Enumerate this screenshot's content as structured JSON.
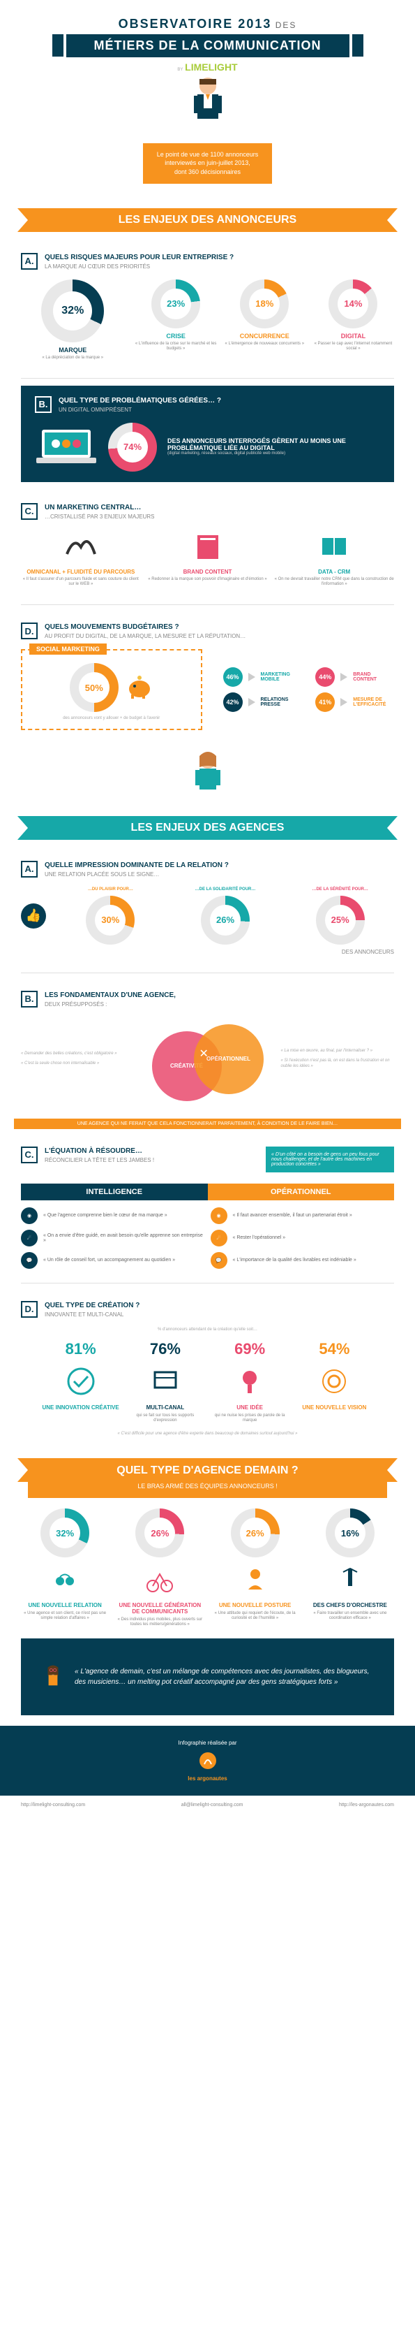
{
  "header": {
    "line1": "OBSERVATOIRE 2013",
    "line1_suffix": "DES",
    "banner": "MÉTIERS DE LA COMMUNICATION",
    "by": "BY",
    "brand": "LIMELIGHT",
    "brand_sub": "CONSULTING",
    "subtitle": "Le point de vue de 1100 annonceurs\ninterviewés en juin-juillet 2013,\ndont 360 décisionnaires"
  },
  "sections": {
    "annonceurs": "LES ENJEUX DES ANNONCEURS",
    "agences": "LES ENJEUX DES AGENCES",
    "demain": "QUEL TYPE D'AGENCE DEMAIN ?",
    "demain_sub": "LE BRAS ARMÉ DES ÉQUIPES ANNONCEURS !"
  },
  "A1": {
    "title": "QUELS RISQUES MAJEURS POUR LEUR ENTREPRISE ?",
    "sub": "LA MARQUE AU CŒUR DES PRIORITÉS",
    "main": {
      "pct": "32%",
      "deg": 115,
      "color": "#053d52",
      "label": "MARQUE",
      "desc": "« La dépréciation de la marque »"
    },
    "items": [
      {
        "pct": "23%",
        "deg": 83,
        "color": "#16a8a8",
        "name": "CRISE",
        "desc": "« L'influence de la crise sur le marché et les budgets »"
      },
      {
        "pct": "18%",
        "deg": 65,
        "color": "#f7931e",
        "name": "CONCURRENCE",
        "desc": "« L'émergence de nouveaux concurrents »"
      },
      {
        "pct": "14%",
        "deg": 50,
        "color": "#e94b6e",
        "name": "DIGITAL",
        "desc": "« Passer le cap avec l'internet notamment social »"
      }
    ]
  },
  "B1": {
    "title": "QUEL TYPE DE PROBLÉMATIQUES GÉRÉES… ?",
    "sub": "UN DIGITAL OMNIPRÉSENT",
    "pct": "74%",
    "deg": 266,
    "color": "#e94b6e",
    "text": "DES ANNONCEURS INTERROGÉS GÈRENT AU MOINS UNE PROBLÉMATIQUE LIÉE AU DIGITAL",
    "tiny": "(digital marketing, réseaux sociaux, digital publicité web mobile)"
  },
  "C1": {
    "title": "UN MARKETING CENTRAL…",
    "sub": "…CRISTALLISÉ PAR 3 ENJEUX MAJEURS",
    "items": [
      {
        "name": "OMNICANAL + FLUIDITÉ DU PARCOURS",
        "color": "#f7931e",
        "desc": "« Il faut s'assurer d'un parcours fluide et sans couture du client sur le WEB »"
      },
      {
        "name": "BRAND CONTENT",
        "color": "#e94b6e",
        "desc": "« Redonner à la marque son pouvoir d'imaginaire et d'émotion »"
      },
      {
        "name": "DATA - CRM",
        "color": "#16a8a8",
        "desc": "« On ne devrait travailler notre CRM que dans la construction de l'information »"
      }
    ]
  },
  "D1": {
    "title": "QUELS MOUVEMENTS BUDGÉTAIRES ?",
    "sub": "AU PROFIT DU DIGITAL, DE LA MARQUE, LA MESURE ET LA RÉPUTATION…",
    "social": {
      "tag": "SOCIAL MARKETING",
      "pct": "50%",
      "deg": 180,
      "color": "#f7931e",
      "desc": "des annonceurs vont y allouer + de budget à l'avenir"
    },
    "grid": [
      {
        "pct": "46%",
        "label": "MARKETING MOBILE",
        "color": "#16a8a8"
      },
      {
        "pct": "44%",
        "label": "BRAND CONTENT",
        "color": "#e94b6e"
      },
      {
        "pct": "42%",
        "label": "RELATIONS PRESSE",
        "color": "#053d52"
      },
      {
        "pct": "41%",
        "label": "MESURE DE L'EFFICACITÉ",
        "color": "#f7931e"
      }
    ]
  },
  "A2": {
    "title": "QUELLE IMPRESSION DOMINANTE DE LA RELATION ?",
    "sub": "UNE RELATION PLACÉE SOUS LE SIGNE…",
    "items": [
      {
        "pre": "…DU PLAISIR POUR…",
        "pct": "30%",
        "color": "#f7931e"
      },
      {
        "pre": "…DE LA SOLIDARITÉ POUR…",
        "pct": "26%",
        "color": "#16a8a8"
      },
      {
        "pre": "…DE LA SÉRÉNITÉ POUR…",
        "pct": "25%",
        "color": "#e94b6e"
      }
    ],
    "suffix": "DES ANNONCEURS"
  },
  "B2": {
    "title": "LES FONDAMENTAUX D'UNE AGENCE,",
    "sub": "DEUX PRÉSUPPOSÉS :",
    "venn": {
      "left": "CRÉATIVITÉ",
      "left_color": "#e94b6e",
      "right": "OPÉRATIONNEL",
      "right_color": "#f7931e"
    },
    "quotes_left": [
      "« Demander des belles créations, c'est obligatoire »",
      "« C'est la seule chose non internalisable »"
    ],
    "quotes_right": [
      "« La mise en œuvre, au final, par l'internaliser ? »",
      "« Si l'exécution n'est pas là, on est dans la frustration et on oublie les idées »"
    ],
    "ribbon": "UNE AGENCE QUI NE FERAIT QUE CELA FONCTIONNERAIT PARFAITEMENT, À CONDITION DE LE FAIRE BIEN…"
  },
  "C2": {
    "title": "L'ÉQUATION À RÉSOUDRE…",
    "sub": "RÉCONCILIER LA TÊTE ET LES JAMBES !",
    "aside": "« D'un côté on a besoin de gens un peu fous pour nous challenger, et de l'autre des machines en production concrètes »",
    "left_head": "INTELLIGENCE",
    "left_color": "#053d52",
    "right_head": "OPÉRATIONNEL",
    "right_color": "#f7931e",
    "left": [
      {
        "t": "« Que l'agence comprenne bien le cœur de ma marque »"
      },
      {
        "t": "« On a envie d'être guidé, en avait besoin qu'elle apprenne son entreprise »"
      },
      {
        "t": "« Un rôle de conseil fort, un accompagnement au quotidien »"
      }
    ],
    "right": [
      {
        "t": "« Il faut avancer ensemble, il faut un partenariat étroit »"
      },
      {
        "t": "« Rester l'opérationnel »"
      },
      {
        "t": "« L'importance de la qualité des livrables est indéniable »"
      }
    ]
  },
  "D2": {
    "title": "QUEL TYPE DE CRÉATION ?",
    "sub": "INNOVANTE ET MULTI-CANAL",
    "lead": "% d'annonceurs attendant de la création qu'elle soit…",
    "items": [
      {
        "pct": "81%",
        "color": "#16a8a8",
        "name": "UNE INNOVATION CRÉATIVE"
      },
      {
        "pct": "76%",
        "color": "#053d52",
        "name": "MULTI-CANAL",
        "desc": "qui se fait sur tous les supports d'expression"
      },
      {
        "pct": "69%",
        "color": "#e94b6e",
        "name": "UNE IDÉE",
        "desc": "qui ne nuise les prises de parole de la marque"
      },
      {
        "pct": "54%",
        "color": "#f7931e",
        "name": "UNE NOUVELLE VISION"
      }
    ],
    "bottom": "« C'est difficile pour une agence d'être experte dans beaucoup de domaines surtout aujourd'hui »"
  },
  "demain": {
    "items": [
      {
        "pct": "32%",
        "color": "#16a8a8",
        "name": "UNE NOUVELLE RELATION",
        "desc": "« Une agence et son client, ce n'est pas une simple relation d'affaires »"
      },
      {
        "pct": "26%",
        "color": "#e94b6e",
        "name": "UNE NOUVELLE GÉNÉRATION DE COMMUNICANTS",
        "desc": "« Des individus plus mobiles, plus ouverts sur toutes les métiers/générations »"
      },
      {
        "pct": "26%",
        "color": "#f7931e",
        "name": "UNE NOUVELLE POSTURE",
        "desc": "« Une attitude qui requiert de l'écoute, de la curiosité et de l'humilité »"
      },
      {
        "pct": "16%",
        "color": "#053d52",
        "name": "DES CHEFS D'ORCHESTRE",
        "desc": "« Faire travailler un ensemble avec une coordination efficace »"
      }
    ]
  },
  "quote": "« L'agence de demain, c'est un mélange de compétences avec des journalistes, des blogueurs, des musiciens… un melting pot créatif accompagné par des gens stratégiques forts »",
  "footer": {
    "credit": "Infographie réalisée par",
    "brand": "les argonautes",
    "links": [
      "http://limelight-consulting.com",
      "all@limelight-consulting.com",
      "http://les-argonautes.com"
    ]
  }
}
